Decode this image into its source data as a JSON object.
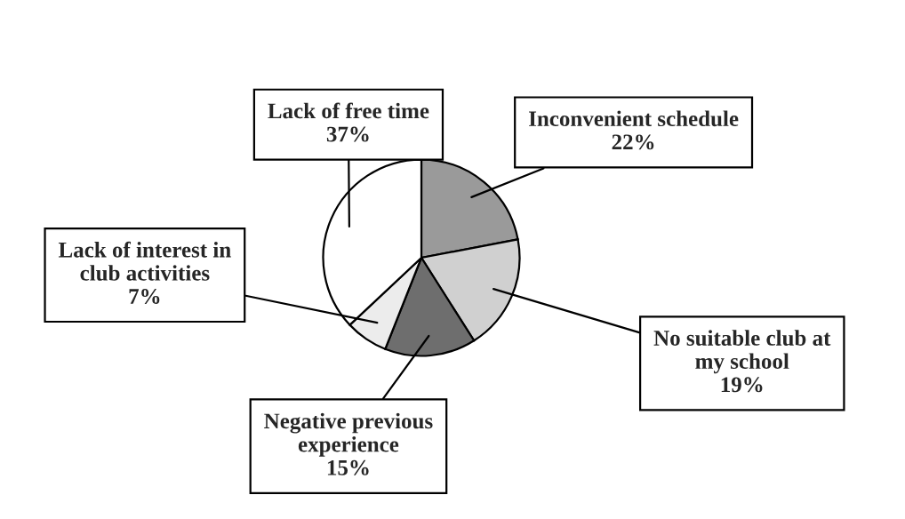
{
  "chart_data": {
    "type": "pie",
    "categories": [
      "Inconvenient schedule",
      "No suitable club at\nmy school",
      "Negative previous\nexperience",
      "Lack of interest in\nclub activities",
      "Lack of free time"
    ],
    "values": [
      22,
      19,
      15,
      7,
      37
    ],
    "value_labels": [
      "22%",
      "19%",
      "15%",
      "7%",
      "37%"
    ],
    "colors": [
      "#9a9a9a",
      "#d0d0d0",
      "#6e6e6e",
      "#ececec",
      "#ffffff"
    ]
  }
}
